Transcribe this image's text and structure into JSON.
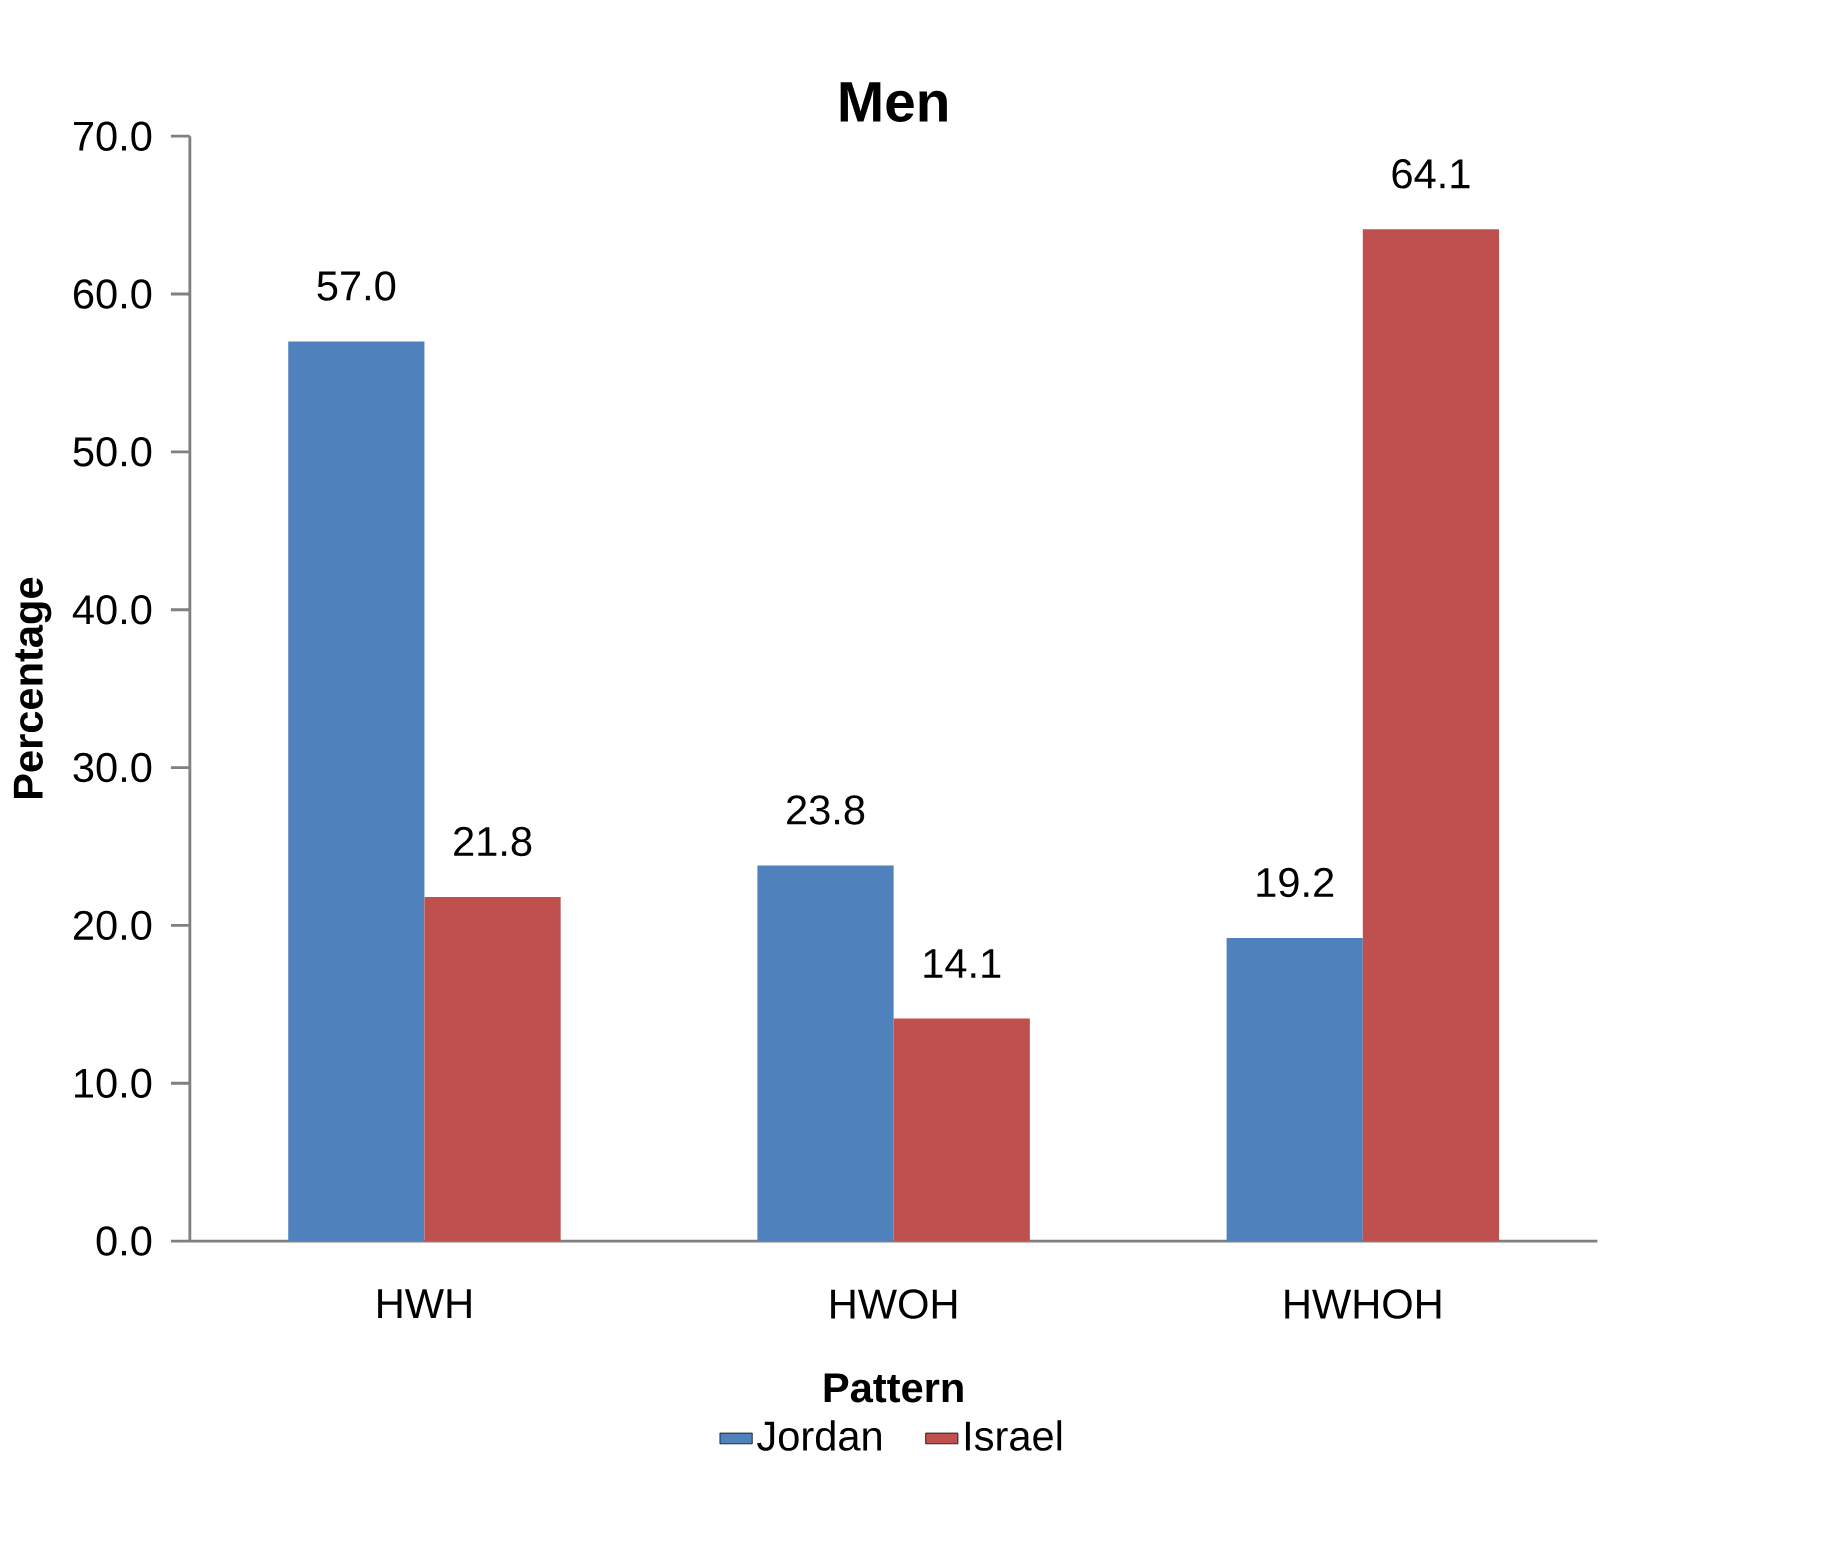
{
  "chart_data": {
    "type": "bar",
    "title": "Men",
    "xlabel": "Pattern",
    "ylabel": "Percentage",
    "categories": [
      "HWH",
      "HWOH",
      "HWHOH"
    ],
    "series": [
      {
        "name": "Jordan",
        "color": "#4f81bd",
        "values": [
          57.0,
          23.8,
          19.2
        ],
        "value_labels": [
          "57.0",
          "23.8",
          "19.2"
        ]
      },
      {
        "name": "Israel",
        "color": "#c0504d",
        "values": [
          21.8,
          14.1,
          64.1
        ],
        "value_labels": [
          "21.8",
          "14.1",
          "64.1"
        ]
      }
    ],
    "ylim": [
      0,
      70
    ],
    "yticks": [
      {
        "value": 0,
        "label": "0.0"
      },
      {
        "value": 10,
        "label": "10.0"
      },
      {
        "value": 20,
        "label": "20.0"
      },
      {
        "value": 30,
        "label": "30.0"
      },
      {
        "value": 40,
        "label": "40.0"
      },
      {
        "value": 50,
        "label": "50.0"
      },
      {
        "value": 60,
        "label": "60.0"
      },
      {
        "value": 70,
        "label": "70.0"
      }
    ],
    "grid": false,
    "legend": "bottom"
  }
}
